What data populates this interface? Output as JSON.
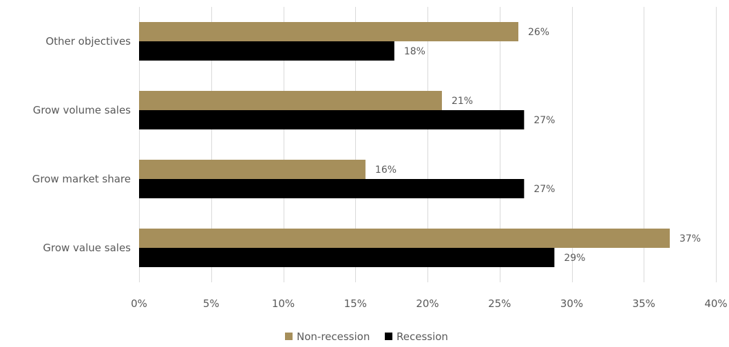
{
  "chart_data": {
    "type": "bar",
    "orientation": "horizontal",
    "categories": [
      "Other objectives",
      "Grow volume sales",
      "Grow market share",
      "Grow value sales"
    ],
    "series": [
      {
        "name": "Non-recession",
        "color": "#A68F5B",
        "values": [
          26.3,
          21.0,
          15.7,
          36.8
        ],
        "labels": [
          "26%",
          "21%",
          "16%",
          "37%"
        ]
      },
      {
        "name": "Recession",
        "color": "#000000",
        "values": [
          17.7,
          26.7,
          26.7,
          28.8
        ],
        "labels": [
          "18%",
          "27%",
          "27%",
          "29%"
        ]
      }
    ],
    "xlim": [
      0,
      40
    ],
    "xticks": [
      0,
      5,
      10,
      15,
      20,
      25,
      30,
      35,
      40
    ],
    "xtick_labels": [
      "0%",
      "5%",
      "10%",
      "15%",
      "20%",
      "25%",
      "30%",
      "35%",
      "40%"
    ],
    "grid": "vertical",
    "gridline_color": "#d9d9d9",
    "legend_position": "bottom"
  }
}
